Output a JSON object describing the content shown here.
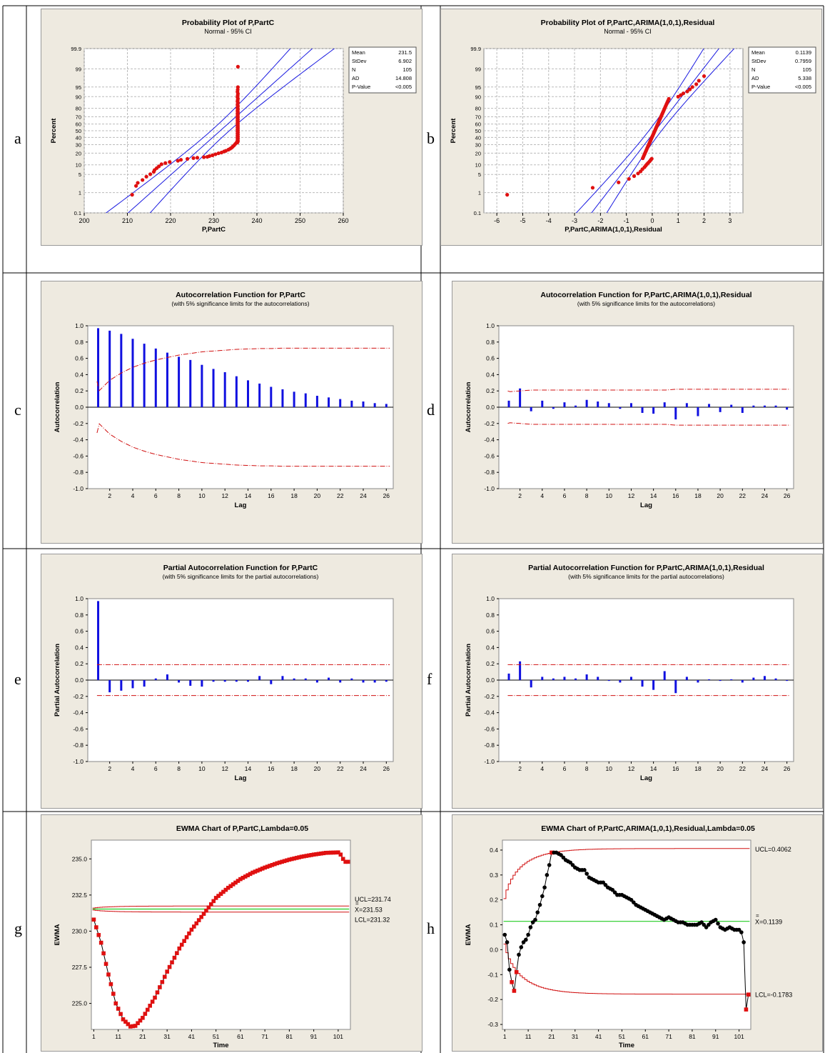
{
  "panels": [
    {
      "letter": "a"
    },
    {
      "letter": "b"
    },
    {
      "letter": "c"
    },
    {
      "letter": "d"
    },
    {
      "letter": "e"
    },
    {
      "letter": "f"
    },
    {
      "letter": "g"
    },
    {
      "letter": "h"
    }
  ],
  "colors": {
    "data": "#e01010",
    "fit": "#1a1ae0",
    "bars": "#1010e0",
    "limit": "#d01010",
    "center": "#22cc22",
    "ewma_h": "#000000"
  },
  "chart_data": [
    {
      "id": "a",
      "type": "scatter",
      "title": "Probability Plot of P,PartC",
      "subtitle": "Normal - 95% CI",
      "xlabel": "P,PartC",
      "ylabel": "Percent",
      "xlim": [
        200,
        260
      ],
      "xticks": [
        200,
        210,
        220,
        230,
        240,
        250,
        260
      ],
      "yticks": [
        0.1,
        1,
        5,
        10,
        20,
        30,
        40,
        50,
        60,
        70,
        80,
        90,
        95,
        99,
        99.9
      ],
      "stats": [
        [
          "Mean",
          "231.5"
        ],
        [
          "StDev",
          "6.902"
        ],
        [
          "N",
          "105"
        ],
        [
          "AD",
          "14.808"
        ],
        [
          "P-Value",
          "<0.005"
        ]
      ],
      "mean": 231.5,
      "sd": 6.902,
      "n": 105,
      "points": [
        [
          211.1,
          0.8
        ],
        [
          212.0,
          1.9
        ],
        [
          212.4,
          2.5
        ],
        [
          213.5,
          3.2
        ],
        [
          214.4,
          4.2
        ],
        [
          215.3,
          5.1
        ],
        [
          216.1,
          6.1
        ],
        [
          216.3,
          7.0
        ],
        [
          216.8,
          8.0
        ],
        [
          217.3,
          9.0
        ],
        [
          217.9,
          10.4
        ],
        [
          218.8,
          11.2
        ],
        [
          219.8,
          12.0
        ],
        [
          221.7,
          12.9
        ],
        [
          222.4,
          13.7
        ],
        [
          223.9,
          14.5
        ],
        [
          225.3,
          15.2
        ],
        [
          226.2,
          15.5
        ],
        [
          227.7,
          16.0
        ],
        [
          228.5,
          16.3
        ],
        [
          229.0,
          17.0
        ],
        [
          229.7,
          17.8
        ],
        [
          230.4,
          18.8
        ],
        [
          231.1,
          19.8
        ],
        [
          231.8,
          20.6
        ],
        [
          232.4,
          21.8
        ],
        [
          232.8,
          22.5
        ],
        [
          233.4,
          23.8
        ],
        [
          233.8,
          25
        ],
        [
          234.1,
          26
        ],
        [
          234.4,
          27.5
        ],
        [
          234.7,
          29
        ],
        [
          235.0,
          31
        ],
        [
          235.3,
          33
        ]
      ]
    },
    {
      "id": "b",
      "type": "scatter",
      "title": "Probability Plot of P,PartC,ARIMA(1,0,1),Residual",
      "subtitle": "Normal - 95% CI",
      "xlabel": "P,PartC,ARIMA(1,0,1),Residual",
      "ylabel": "Percent",
      "xlim": [
        -6.5,
        3.5
      ],
      "xticks": [
        -6,
        -5,
        -4,
        -3,
        -2,
        -1,
        0,
        1,
        2,
        3
      ],
      "yticks": [
        0.1,
        1,
        5,
        10,
        20,
        30,
        40,
        50,
        60,
        70,
        80,
        90,
        95,
        99,
        99.9
      ],
      "stats": [
        [
          "Mean",
          "0.1139"
        ],
        [
          "StDev",
          "0.7959"
        ],
        [
          "N",
          "105"
        ],
        [
          "AD",
          "5.338"
        ],
        [
          "P-Value",
          "<0.005"
        ]
      ],
      "mean": 0.1139,
      "sd": 0.7959,
      "n": 105,
      "points": [
        [
          -5.6,
          0.8
        ],
        [
          -2.3,
          1.6
        ],
        [
          -1.3,
          2.6
        ],
        [
          -0.9,
          3.5
        ],
        [
          -0.7,
          4.4
        ],
        [
          -0.55,
          5.4
        ],
        [
          -0.45,
          6.3
        ],
        [
          -0.38,
          7.4
        ],
        [
          -0.3,
          8.5
        ],
        [
          -0.25,
          9.5
        ],
        [
          -0.2,
          10.5
        ],
        [
          -0.15,
          11.5
        ],
        [
          -0.1,
          12.5
        ],
        [
          -0.06,
          13.6
        ],
        [
          -0.02,
          14.6
        ],
        [
          1.0,
          90
        ],
        [
          1.1,
          91
        ],
        [
          1.2,
          92
        ],
        [
          1.35,
          93
        ],
        [
          1.45,
          94
        ],
        [
          1.55,
          95
        ],
        [
          1.7,
          96
        ],
        [
          1.8,
          97
        ],
        [
          2.0,
          98
        ]
      ]
    },
    {
      "id": "c",
      "type": "bar",
      "title": "Autocorrelation Function for P,PartC",
      "subtitle": "(with 5% significance limits for the autocorrelations)",
      "xlabel": "Lag",
      "ylabel": "Autocorrelation",
      "ylim": [
        -1,
        1
      ],
      "xticks": [
        2,
        4,
        6,
        8,
        10,
        12,
        14,
        16,
        18,
        20,
        22,
        24,
        26
      ],
      "yticks": [
        "1.0",
        "0.8",
        "0.6",
        "0.4",
        "0.2",
        "0.0",
        "-0.2",
        "-0.4",
        "-0.6",
        "-0.8",
        "-1.0"
      ],
      "lags": [
        1,
        2,
        3,
        4,
        5,
        6,
        7,
        8,
        9,
        10,
        11,
        12,
        13,
        14,
        15,
        16,
        17,
        18,
        19,
        20,
        21,
        22,
        23,
        24,
        25,
        26
      ],
      "values": [
        0.97,
        0.94,
        0.9,
        0.84,
        0.78,
        0.72,
        0.67,
        0.62,
        0.58,
        0.52,
        0.47,
        0.43,
        0.38,
        0.33,
        0.29,
        0.25,
        0.22,
        0.19,
        0.17,
        0.14,
        0.12,
        0.1,
        0.08,
        0.07,
        0.05,
        0.04
      ],
      "limits": [
        0.19,
        0.33,
        0.42,
        0.49,
        0.54,
        0.58,
        0.61,
        0.64,
        0.66,
        0.68,
        0.69,
        0.7,
        0.71,
        0.715,
        0.72,
        0.72,
        0.725,
        0.725,
        0.725,
        0.725,
        0.725,
        0.725,
        0.725,
        0.725,
        0.725,
        0.725
      ]
    },
    {
      "id": "d",
      "type": "bar",
      "title": "Autocorrelation Function for P,PartC,ARIMA(1,0,1),Residual",
      "subtitle": "(with 5% significance limits for the autocorrelations)",
      "xlabel": "Lag",
      "ylabel": "Autocorrelation",
      "ylim": [
        -1,
        1
      ],
      "xticks": [
        2,
        4,
        6,
        8,
        10,
        12,
        14,
        16,
        18,
        20,
        22,
        24,
        26
      ],
      "yticks": [
        "1.0",
        "0.8",
        "0.6",
        "0.4",
        "0.2",
        "0.0",
        "-0.2",
        "-0.4",
        "-0.6",
        "-0.8",
        "-1.0"
      ],
      "lags": [
        1,
        2,
        3,
        4,
        5,
        6,
        7,
        8,
        9,
        10,
        11,
        12,
        13,
        14,
        15,
        16,
        17,
        18,
        19,
        20,
        21,
        22,
        23,
        24,
        25,
        26
      ],
      "values": [
        0.08,
        0.23,
        -0.05,
        0.08,
        -0.02,
        0.06,
        0.02,
        0.09,
        0.07,
        0.05,
        -0.02,
        0.05,
        -0.07,
        -0.08,
        0.06,
        -0.15,
        0.05,
        -0.11,
        0.04,
        -0.06,
        0.03,
        -0.07,
        0.02,
        0.02,
        0.02,
        -0.03
      ],
      "limits": [
        0.19,
        0.2,
        0.21,
        0.21,
        0.21,
        0.21,
        0.21,
        0.21,
        0.21,
        0.21,
        0.21,
        0.21,
        0.21,
        0.21,
        0.21,
        0.22,
        0.22,
        0.22,
        0.22,
        0.22,
        0.22,
        0.22,
        0.22,
        0.22,
        0.22,
        0.22
      ]
    },
    {
      "id": "e",
      "type": "bar",
      "title": "Partial Autocorrelation Function for P,PartC",
      "subtitle": "(with 5% significance limits for the partial autocorrelations)",
      "xlabel": "Lag",
      "ylabel": "Partial Autocorrelation",
      "ylim": [
        -1,
        1
      ],
      "xticks": [
        2,
        4,
        6,
        8,
        10,
        12,
        14,
        16,
        18,
        20,
        22,
        24,
        26
      ],
      "yticks": [
        "1.0",
        "0.8",
        "0.6",
        "0.4",
        "0.2",
        "0.0",
        "-0.2",
        "-0.4",
        "-0.6",
        "-0.8",
        "-1.0"
      ],
      "lags": [
        1,
        2,
        3,
        4,
        5,
        6,
        7,
        8,
        9,
        10,
        11,
        12,
        13,
        14,
        15,
        16,
        17,
        18,
        19,
        20,
        21,
        22,
        23,
        24,
        25,
        26
      ],
      "values": [
        0.97,
        -0.15,
        -0.13,
        -0.1,
        -0.08,
        0.02,
        0.07,
        -0.03,
        -0.07,
        -0.08,
        -0.02,
        -0.02,
        -0.02,
        -0.02,
        0.05,
        -0.05,
        0.05,
        0.02,
        0.02,
        -0.03,
        0.03,
        -0.03,
        0.02,
        -0.03,
        -0.03,
        -0.02
      ],
      "limit": 0.19
    },
    {
      "id": "f",
      "type": "bar",
      "title": "Partial Autocorrelation Function for P,PartC,ARIMA(1,0,1),Residual",
      "subtitle": "(with 5% significance limits for the partial autocorrelations)",
      "xlabel": "Lag",
      "ylabel": "Partial Autocorrelation",
      "ylim": [
        -1,
        1
      ],
      "xticks": [
        2,
        4,
        6,
        8,
        10,
        12,
        14,
        16,
        18,
        20,
        22,
        24,
        26
      ],
      "yticks": [
        "1.0",
        "0.8",
        "0.6",
        "0.4",
        "0.2",
        "0.0",
        "-0.2",
        "-0.4",
        "-0.6",
        "-0.8",
        "-1.0"
      ],
      "lags": [
        1,
        2,
        3,
        4,
        5,
        6,
        7,
        8,
        9,
        10,
        11,
        12,
        13,
        14,
        15,
        16,
        17,
        18,
        19,
        20,
        21,
        22,
        23,
        24,
        25,
        26
      ],
      "values": [
        0.08,
        0.23,
        -0.09,
        0.04,
        0.02,
        0.04,
        0.02,
        0.07,
        0.04,
        -0.01,
        -0.03,
        0.04,
        -0.08,
        -0.12,
        0.11,
        -0.16,
        0.04,
        -0.03,
        0.01,
        -0.01,
        0.01,
        -0.03,
        0.03,
        0.05,
        0.02,
        -0.01
      ],
      "limit": 0.19
    },
    {
      "id": "g",
      "type": "line",
      "title": "EWMA Chart of P,PartC,Lambda=0.05",
      "xlabel": "Time",
      "ylabel": "EWMA",
      "xlim": [
        0,
        106
      ],
      "ylim": [
        223.2,
        236.3
      ],
      "xticks": [
        1,
        11,
        21,
        31,
        41,
        51,
        61,
        71,
        81,
        91,
        101
      ],
      "yticks": [
        "235.0",
        "232.5",
        "230.0",
        "227.5",
        "225.0"
      ],
      "ucl": 231.74,
      "center": 231.53,
      "lcl": 231.32,
      "ucl_label": "UCL=231.74",
      "center_label": "X=231.53",
      "lcl_label": "LCL=231.32",
      "center_symbol": "=",
      "key_points": [
        [
          1,
          230.8
        ],
        [
          4,
          229.2
        ],
        [
          7,
          227
        ],
        [
          10,
          225
        ],
        [
          13,
          223.9
        ],
        [
          16,
          223.4
        ],
        [
          18,
          223.45
        ],
        [
          21,
          224
        ],
        [
          26,
          225.4
        ],
        [
          31,
          227.2
        ],
        [
          36,
          228.8
        ],
        [
          41,
          230.1
        ],
        [
          46,
          231.2
        ],
        [
          51,
          232.3
        ],
        [
          56,
          233.0
        ],
        [
          61,
          233.6
        ],
        [
          66,
          234.05
        ],
        [
          71,
          234.4
        ],
        [
          76,
          234.7
        ],
        [
          81,
          234.95
        ],
        [
          86,
          235.15
        ],
        [
          91,
          235.3
        ],
        [
          96,
          235.42
        ],
        [
          101,
          235.45
        ],
        [
          102,
          235.3
        ],
        [
          103,
          235.0
        ],
        [
          104,
          234.8
        ]
      ]
    },
    {
      "id": "h",
      "type": "line",
      "title": "EWMA Chart of P,PartC,ARIMA(1,0,1),Residual,Lambda=0.05",
      "xlabel": "Time",
      "ylabel": "EWMA",
      "xlim": [
        0,
        106
      ],
      "ylim": [
        -0.32,
        0.44
      ],
      "xticks": [
        1,
        11,
        21,
        31,
        41,
        51,
        61,
        71,
        81,
        91,
        101
      ],
      "yticks": [
        "0.4",
        "0.3",
        "0.2",
        "0.1",
        "0.0",
        "-0.1",
        "-0.2",
        "-0.3"
      ],
      "ucl": 0.4062,
      "center": 0.1139,
      "lcl": -0.1783,
      "ucl_label": "UCL=0.4062",
      "center_label": "X=0.1139",
      "lcl_label": "LCL=-0.1783",
      "center_symbol": "=",
      "out_points": [
        4,
        5,
        6,
        21,
        104,
        105
      ],
      "key_points": [
        [
          1,
          0.06
        ],
        [
          2,
          0.03
        ],
        [
          3,
          -0.08
        ],
        [
          4,
          -0.13
        ],
        [
          5,
          -0.165
        ],
        [
          6,
          -0.09
        ],
        [
          7,
          -0.02
        ],
        [
          8,
          0.01
        ],
        [
          9,
          0.03
        ],
        [
          10,
          0.04
        ],
        [
          11,
          0.06
        ],
        [
          12,
          0.09
        ],
        [
          13,
          0.11
        ],
        [
          14,
          0.12
        ],
        [
          16,
          0.18
        ],
        [
          18,
          0.25
        ],
        [
          19,
          0.3
        ],
        [
          20,
          0.34
        ],
        [
          21,
          0.39
        ],
        [
          23,
          0.39
        ],
        [
          25,
          0.38
        ],
        [
          27,
          0.36
        ],
        [
          29,
          0.35
        ],
        [
          31,
          0.33
        ],
        [
          33,
          0.32
        ],
        [
          35,
          0.32
        ],
        [
          37,
          0.29
        ],
        [
          39,
          0.28
        ],
        [
          41,
          0.27
        ],
        [
          43,
          0.27
        ],
        [
          45,
          0.25
        ],
        [
          47,
          0.24
        ],
        [
          49,
          0.22
        ],
        [
          51,
          0.22
        ],
        [
          53,
          0.21
        ],
        [
          55,
          0.2
        ],
        [
          57,
          0.18
        ],
        [
          59,
          0.17
        ],
        [
          61,
          0.16
        ],
        [
          63,
          0.15
        ],
        [
          65,
          0.14
        ],
        [
          67,
          0.13
        ],
        [
          69,
          0.12
        ],
        [
          71,
          0.13
        ],
        [
          73,
          0.12
        ],
        [
          75,
          0.11
        ],
        [
          77,
          0.11
        ],
        [
          79,
          0.1
        ],
        [
          81,
          0.1
        ],
        [
          83,
          0.1
        ],
        [
          85,
          0.11
        ],
        [
          87,
          0.09
        ],
        [
          89,
          0.11
        ],
        [
          91,
          0.12
        ],
        [
          93,
          0.09
        ],
        [
          95,
          0.08
        ],
        [
          97,
          0.09
        ],
        [
          99,
          0.08
        ],
        [
          101,
          0.08
        ],
        [
          102,
          0.07
        ],
        [
          103,
          0.03
        ],
        [
          104,
          -0.24
        ],
        [
          105,
          -0.18
        ]
      ]
    }
  ]
}
